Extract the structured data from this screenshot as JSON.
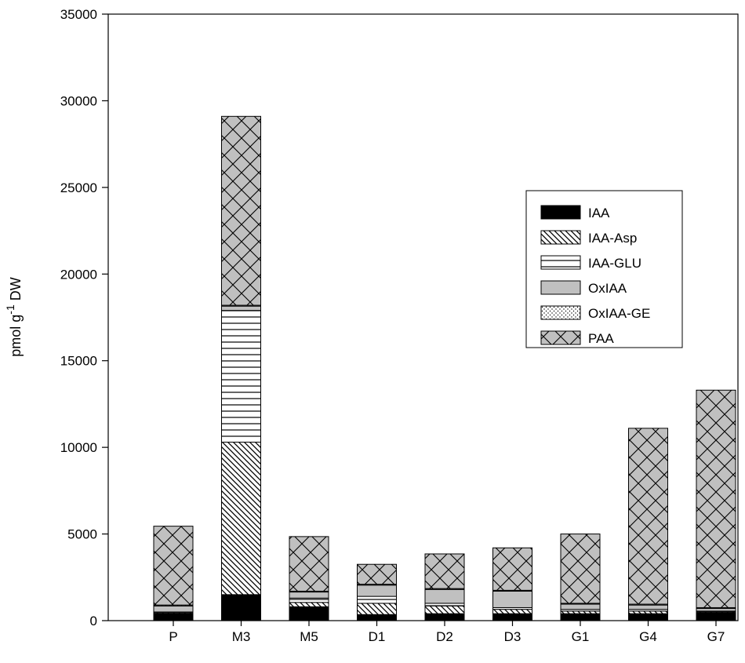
{
  "chart_data": {
    "type": "bar",
    "stacked": true,
    "categories": [
      "P",
      "M3",
      "M5",
      "D1",
      "D2",
      "D3",
      "G1",
      "G4",
      "G7"
    ],
    "series": [
      {
        "name": "IAA",
        "pattern": "solid-black",
        "values": [
          400,
          1500,
          800,
          350,
          400,
          400,
          400,
          400,
          450
        ]
      },
      {
        "name": "IAA-Asp",
        "pattern": "diagonal-hatch",
        "values": [
          50,
          8800,
          250,
          650,
          450,
          250,
          150,
          150,
          50
        ]
      },
      {
        "name": "IAA-GLU",
        "pattern": "horizontal-lines",
        "values": [
          50,
          7600,
          250,
          400,
          150,
          100,
          100,
          100,
          50
        ]
      },
      {
        "name": "OxIAA",
        "pattern": "solid-gray",
        "values": [
          350,
          250,
          350,
          650,
          800,
          950,
          300,
          250,
          150
        ]
      },
      {
        "name": "OxIAA-GE",
        "pattern": "dots",
        "values": [
          50,
          50,
          50,
          50,
          50,
          50,
          50,
          50,
          50
        ]
      },
      {
        "name": "PAA",
        "pattern": "crosshatch-gray",
        "values": [
          4550,
          10900,
          3150,
          1150,
          2000,
          2450,
          4000,
          10150,
          12550
        ]
      }
    ],
    "ylabel_base": "pmol g",
    "ylabel_sup": "-1",
    "ylabel_end": " DW",
    "ylim": [
      0,
      35000
    ],
    "yticks": [
      0,
      5000,
      10000,
      15000,
      20000,
      25000,
      30000,
      35000
    ],
    "grid": false,
    "legend_position": "right-center"
  },
  "colors": {
    "black": "#000000",
    "gray": "#c0c0c0",
    "white": "#ffffff"
  }
}
